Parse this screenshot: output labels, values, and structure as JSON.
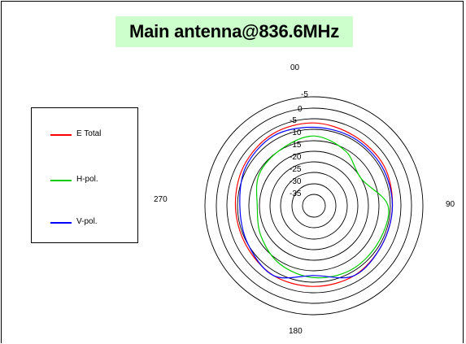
{
  "chart_data": {
    "type": "polar-line",
    "title": "Main antenna@836.6MHz",
    "angle_labels": {
      "top": "00",
      "right": "90",
      "bottom": "180",
      "left": "270"
    },
    "radial_ticks": [
      "-5",
      "0",
      "-5",
      "-10",
      "-15",
      "-20",
      "-25",
      "-30",
      "-35"
    ],
    "radial_range_dB": [
      -40,
      10
    ],
    "grid": true,
    "legend_position": "left",
    "series": [
      {
        "name": "E Total",
        "color": "#ff0000",
        "angles_deg": [
          0,
          30,
          60,
          90,
          120,
          150,
          180,
          210,
          240,
          270,
          300,
          330
        ],
        "values_dB": [
          -2,
          -3,
          -3,
          -4,
          -4,
          -3,
          -3,
          -3,
          -4,
          -4,
          -3,
          -2
        ]
      },
      {
        "name": "H-pol.",
        "color": "#00cc00",
        "angles_deg": [
          0,
          30,
          60,
          90,
          120,
          150,
          180,
          210,
          240,
          270,
          300,
          330
        ],
        "values_dB": [
          -8,
          -11,
          -15,
          -6,
          -6,
          -6,
          -7,
          -9,
          -12,
          -14,
          -11,
          -10
        ]
      },
      {
        "name": "V-pol.",
        "color": "#0000ff",
        "angles_deg": [
          0,
          30,
          60,
          90,
          120,
          150,
          180,
          210,
          240,
          270,
          300,
          330
        ],
        "values_dB": [
          -4,
          -4,
          -4,
          -4,
          -4,
          -3,
          -8,
          -3,
          -5,
          -6,
          -4,
          -3
        ]
      }
    ]
  }
}
